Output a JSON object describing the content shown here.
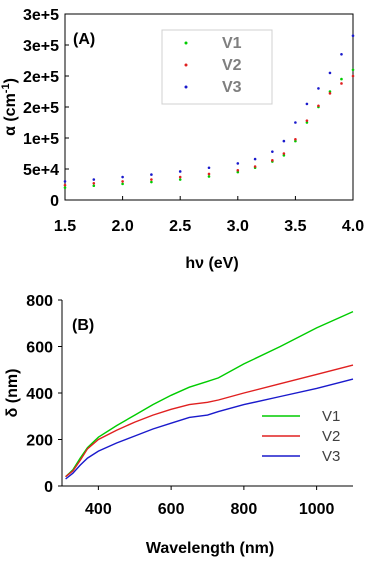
{
  "colors": {
    "V1": "#00cc00",
    "V2": "#e02020",
    "V3": "#1a1acc"
  },
  "chart_data": [
    {
      "panel": "(A)",
      "type": "scatter",
      "xlabel": "hν (eV)",
      "ylabel": "α (cm-1)",
      "ylabel_main": "α (cm",
      "ylabel_sup": "-1",
      "ylabel_end": ")",
      "xlim": [
        1.5,
        4.0
      ],
      "ylim": [
        0,
        300000
      ],
      "xticks": [
        "1.5",
        "2.0",
        "2.5",
        "3.0",
        "3.5",
        "4.0"
      ],
      "xtick_values": [
        1.5,
        2.0,
        2.5,
        3.0,
        3.5,
        4.0
      ],
      "yticks": [
        "0",
        "5e+4",
        "1e+5",
        "2e+5",
        "2e+5",
        "3e+5",
        "3e+5"
      ],
      "ytick_values": [
        0,
        50000,
        100000,
        150000,
        200000,
        250000,
        300000
      ],
      "legend": [
        "V1",
        "V2",
        "V3"
      ],
      "legend_placement": "top-right",
      "x": [
        1.5,
        1.75,
        2.0,
        2.25,
        2.5,
        2.75,
        3.0,
        3.15,
        3.3,
        3.4,
        3.5,
        3.6,
        3.7,
        3.8,
        3.9,
        4.0
      ],
      "series": [
        {
          "name": "V1",
          "values": [
            20000,
            23000,
            26000,
            29000,
            33000,
            38000,
            45000,
            52000,
            62000,
            72000,
            95000,
            125000,
            150000,
            175000,
            195000,
            210000
          ]
        },
        {
          "name": "V2",
          "values": [
            24000,
            27000,
            30000,
            33000,
            37000,
            42000,
            48000,
            54000,
            64000,
            75000,
            98000,
            128000,
            152000,
            172000,
            188000,
            200000
          ]
        },
        {
          "name": "V3",
          "values": [
            30000,
            33000,
            37000,
            41000,
            46000,
            52000,
            59000,
            66000,
            78000,
            95000,
            125000,
            155000,
            180000,
            205000,
            235000,
            265000
          ]
        }
      ]
    },
    {
      "panel": "(B)",
      "type": "line",
      "xlabel": "Wavelength (nm)",
      "ylabel": "δ (nm)",
      "xlim": [
        300,
        1100
      ],
      "ylim": [
        0,
        800
      ],
      "xticks": [
        "400",
        "600",
        "800",
        "1000"
      ],
      "xtick_values": [
        400,
        600,
        800,
        1000
      ],
      "yticks": [
        "0",
        "200",
        "400",
        "600",
        "800"
      ],
      "ytick_values": [
        0,
        200,
        400,
        600,
        800
      ],
      "legend": [
        "V1",
        "V2",
        "V3"
      ],
      "legend_placement": "bottom-right",
      "x": [
        310,
        330,
        350,
        370,
        400,
        450,
        500,
        550,
        600,
        650,
        700,
        730,
        800,
        900,
        1000,
        1100
      ],
      "series": [
        {
          "name": "V1",
          "values": [
            40,
            70,
            120,
            165,
            210,
            260,
            305,
            350,
            390,
            425,
            450,
            465,
            525,
            600,
            680,
            750
          ]
        },
        {
          "name": "V2",
          "values": [
            40,
            65,
            110,
            160,
            200,
            240,
            275,
            305,
            330,
            350,
            360,
            370,
            400,
            440,
            480,
            520
          ]
        },
        {
          "name": "V3",
          "values": [
            30,
            55,
            90,
            120,
            150,
            185,
            215,
            245,
            270,
            295,
            305,
            320,
            350,
            385,
            420,
            460
          ]
        }
      ]
    }
  ]
}
